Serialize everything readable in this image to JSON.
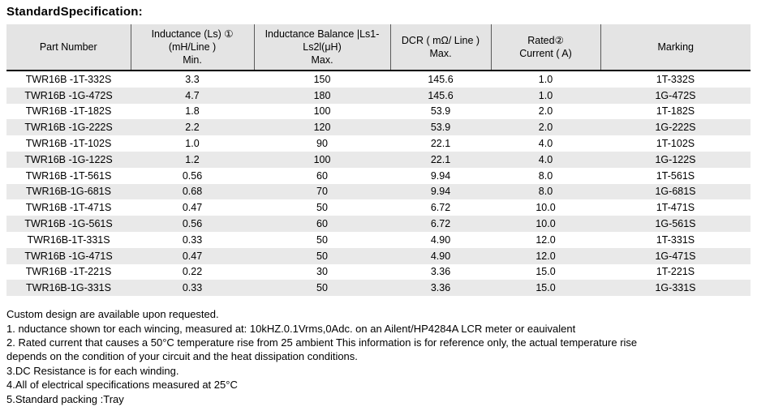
{
  "title": "StandardSpecification:",
  "table": {
    "columns": [
      {
        "key": "part-number",
        "lines": [
          "Part Number"
        ]
      },
      {
        "key": "inductance",
        "lines": [
          "Inductance (Ls) ①",
          "(mH/Line )",
          "Min."
        ]
      },
      {
        "key": "inductance-balance",
        "lines": [
          "Inductance Balance |Ls1-",
          "Ls2l(μH)",
          "Max."
        ]
      },
      {
        "key": "dcr",
        "lines": [
          "DCR ( mΩ/ Line )",
          "Max."
        ]
      },
      {
        "key": "rated-current",
        "lines": [
          "Rated②",
          "Current ( A)"
        ]
      },
      {
        "key": "marking",
        "lines": [
          "Marking"
        ]
      }
    ],
    "rows": [
      [
        "TWR16B -1T-332S",
        "3.3",
        "150",
        "145.6",
        "1.0",
        "1T-332S"
      ],
      [
        "TWR16B -1G-472S",
        "4.7",
        "180",
        "145.6",
        "1.0",
        "1G-472S"
      ],
      [
        "TWR16B -1T-182S",
        "1.8",
        "100",
        "53.9",
        "2.0",
        "1T-182S"
      ],
      [
        "TWR16B -1G-222S",
        "2.2",
        "120",
        "53.9",
        "2.0",
        "1G-222S"
      ],
      [
        "TWR16B -1T-102S",
        "1.0",
        "90",
        "22.1",
        "4.0",
        "1T-102S"
      ],
      [
        "TWR16B -1G-122S",
        "1.2",
        "100",
        "22.1",
        "4.0",
        "1G-122S"
      ],
      [
        "TWR16B -1T-561S",
        "0.56",
        "60",
        "9.94",
        "8.0",
        "1T-561S"
      ],
      [
        "TWR16B-1G-681S",
        "0.68",
        "70",
        "9.94",
        "8.0",
        "1G-681S"
      ],
      [
        "TWR16B -1T-471S",
        "0.47",
        "50",
        "6.72",
        "10.0",
        "1T-471S"
      ],
      [
        "TWR16B -1G-561S",
        "0.56",
        "60",
        "6.72",
        "10.0",
        "1G-561S"
      ],
      [
        "TWR16B-1T-331S",
        "0.33",
        "50",
        "4.90",
        "12.0",
        "1T-331S"
      ],
      [
        "TWR16B -1G-471S",
        "0.47",
        "50",
        "4.90",
        "12.0",
        "1G-471S"
      ],
      [
        "TWR16B -1T-221S",
        "0.22",
        "30",
        "3.36",
        "15.0",
        "1T-221S"
      ],
      [
        "TWR16B-1G-331S",
        "0.33",
        "50",
        "3.36",
        "15.0",
        "1G-331S"
      ]
    ]
  },
  "notes": [
    "Custom design are available upon requested.",
    "1. nductance shown tor each wincing, measured at: 10kHZ.0.1Vrms,0Adc. on an Ailent/HP4284A LCR meter or eauivalent",
    "2. Rated current that causes a 50°C temperature rise from 25 ambient This information is for reference only, the actual temperature rise",
    "depends on the condition of your circuit and the heat dissipation conditions.",
    "3.DC Resistance is for each winding.",
    "4.All of electrical specifications measured at 25°C",
    "5.Standard packing :Tray"
  ],
  "colors": {
    "header_bg": "#e4e4e4",
    "stripe_bg": "#e9e9e9",
    "header_divider": "#5a5a5a",
    "header_underline": "#000000",
    "text": "#000000"
  }
}
